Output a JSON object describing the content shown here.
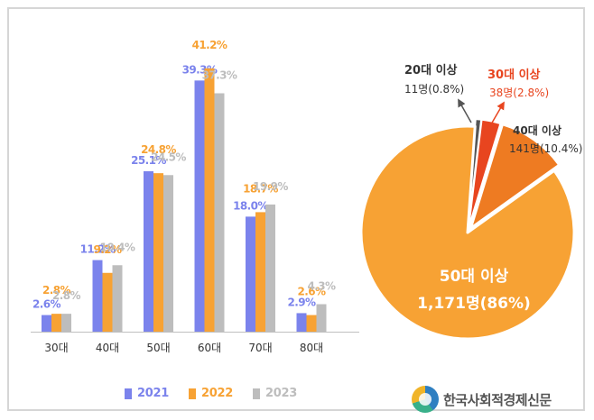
{
  "chart_data": [
    {
      "type": "bar",
      "categories": [
        "30대",
        "40대",
        "50대",
        "60대",
        "70대",
        "80대"
      ],
      "series": [
        {
          "name": "2021",
          "color": "#7b83ec",
          "values": [
            2.6,
            11.2,
            25.1,
            39.3,
            18.0,
            2.9
          ],
          "labels": [
            "2.6%",
            "11.2%",
            "25.1%",
            "39.3%",
            "18.0%",
            "2.9%"
          ]
        },
        {
          "name": "2022",
          "color": "#f7a234",
          "values": [
            2.8,
            9.2,
            24.8,
            41.2,
            18.7,
            2.6
          ],
          "labels": [
            "2.8%",
            "9.2%",
            "24.8%",
            "41.2%",
            "18.7%",
            "2.6%"
          ]
        },
        {
          "name": "2023",
          "color": "#bdbdbd",
          "values": [
            2.8,
            10.4,
            24.5,
            37.3,
            19.9,
            4.3
          ],
          "labels": [
            "2.8%",
            "10.4%",
            "24.5%",
            "37.3%",
            "19.9%",
            "4.3%"
          ]
        }
      ],
      "ylim": [
        0,
        44
      ],
      "grid": false,
      "legend": "bottom"
    },
    {
      "type": "pie",
      "slices": [
        {
          "label": "50대 이상",
          "value_label": "1,171명(86%)",
          "value": 86.0,
          "color": "#f7a234",
          "label_color": "#ffffff"
        },
        {
          "label": "40대 이상",
          "value_label": "141명(10.4%)",
          "value": 10.4,
          "color": "#ee7b22",
          "label_color": "#333333"
        },
        {
          "label": "30대 이상",
          "value_label": "38명(2.8%)",
          "value": 2.8,
          "color": "#e8451f",
          "label_color": "#e8451f"
        },
        {
          "label": "20대 이상",
          "value_label": "11명(0.8%)",
          "value": 0.8,
          "color": "#555555",
          "label_color": "#333333"
        }
      ]
    }
  ],
  "watermark": {
    "text": "한국사회적경제신문"
  }
}
